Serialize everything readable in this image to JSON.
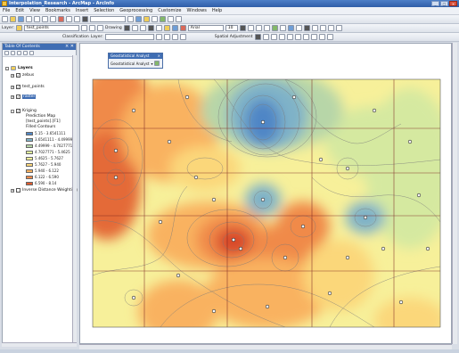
{
  "window": {
    "title": "Interpolation_Research - ArcMap - ArcInfo"
  },
  "menu": [
    "File",
    "Edit",
    "View",
    "Bookmarks",
    "Insert",
    "Selection",
    "Geoprocessing",
    "Customize",
    "Windows",
    "Help"
  ],
  "toolbar2": {
    "layer_label": "Layer:",
    "layer_value": "test_points",
    "drawing_label": "Drawing",
    "font_value": "Arial",
    "size_value": "10"
  },
  "toolbar3": {
    "classification_label": "Classification",
    "layer_label": "Layer:",
    "spatial_adjustment_label": "Spatial Adjustment"
  },
  "toc": {
    "title": "Table Of Contents",
    "layers_label": "Layers",
    "items": [
      {
        "label": "zebus"
      },
      {
        "label": "test_points"
      },
      {
        "label": "raster"
      },
      {
        "label": "Kriging"
      },
      {
        "label": "Prediction Map"
      },
      {
        "label": "[test_points].[F1]"
      },
      {
        "label": "Filled Contours"
      },
      {
        "label": "Inverse Distance Weighting"
      }
    ],
    "legend": [
      {
        "label": "5.15 - 3.6541111",
        "color": "#4f86c6"
      },
      {
        "label": "3.6541111 - 4.49999",
        "color": "#7fb2c8"
      },
      {
        "label": "4.49999 - 4.7027771",
        "color": "#b7d6a8"
      },
      {
        "label": "4.7027771 - 5.4625",
        "color": "#e0ee9e"
      },
      {
        "label": "5.4625 - 5.7627",
        "color": "#f6f29a"
      },
      {
        "label": "5.7627 - 5.940",
        "color": "#fbd77a"
      },
      {
        "label": "5.940 - 6.122",
        "color": "#f9b260"
      },
      {
        "label": "6.122 - 6.590",
        "color": "#f08a4a"
      },
      {
        "label": "6.590 - 8.14",
        "color": "#e05a2e"
      }
    ]
  },
  "ga_toolbar": {
    "title": "Geostatistical Analyst",
    "menu_label": "Geostatistical Analyst"
  },
  "colors": {
    "deep": "#d84a2a",
    "orange": "#f08a4a",
    "lightorange": "#f9b260",
    "yellow": "#f6f29a",
    "lightgreen": "#d5e9a0",
    "teal": "#7fb2c8",
    "blue": "#4f86c6"
  }
}
